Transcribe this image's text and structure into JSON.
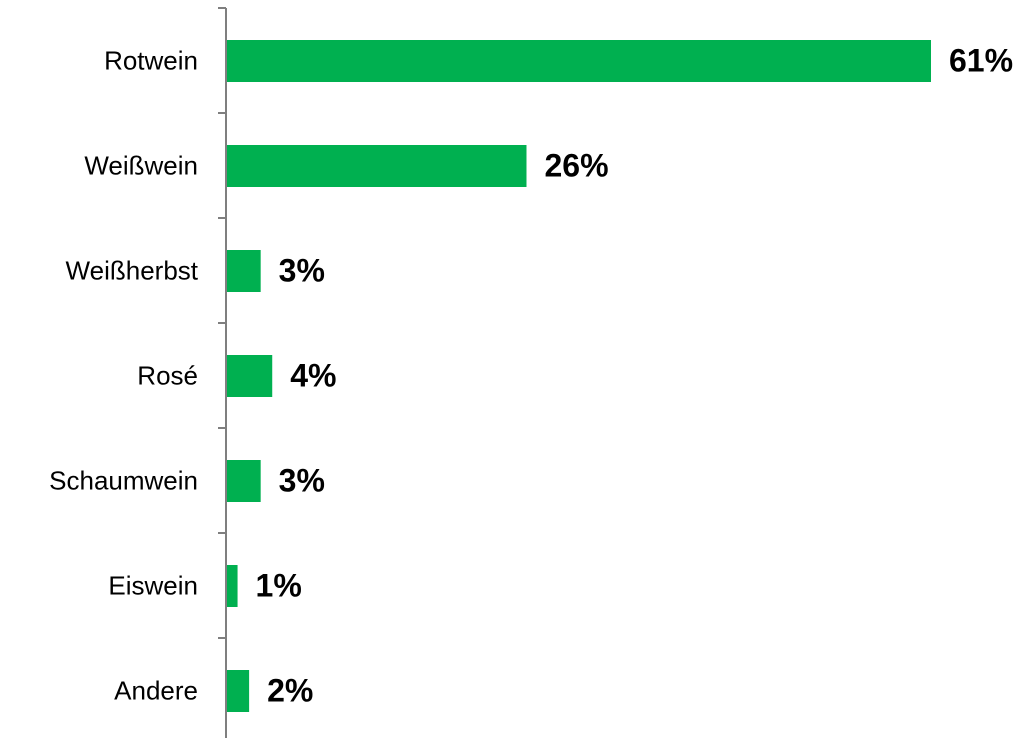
{
  "chart_data": {
    "type": "bar",
    "orientation": "horizontal",
    "categories": [
      "Rotwein",
      "Weißwein",
      "Weißherbst",
      "Rosé",
      "Schaumwein",
      "Eiswein",
      "Andere"
    ],
    "values": [
      61,
      26,
      3,
      4,
      3,
      1,
      2
    ],
    "value_labels": [
      "61%",
      "26%",
      "3%",
      "4%",
      "3%",
      "1%",
      "2%"
    ],
    "unit": "%",
    "xlim": [
      0,
      61
    ],
    "title": "",
    "xlabel": "",
    "ylabel": "",
    "grid": false,
    "legend": "none",
    "bar_color": "#00b050"
  }
}
